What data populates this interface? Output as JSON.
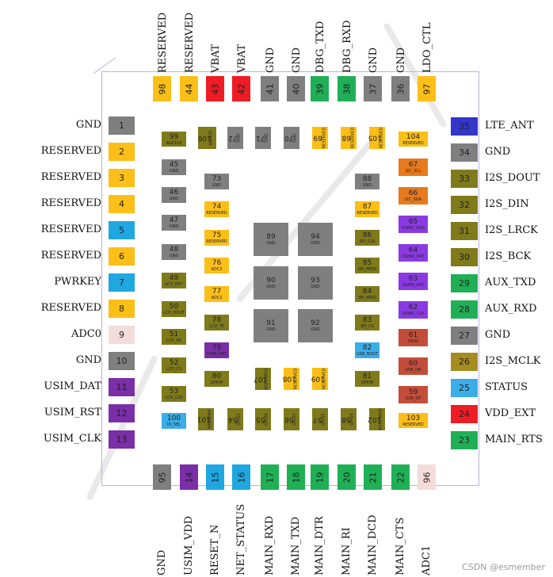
{
  "colors": {
    "yellow": "#fbbf18",
    "gray": "#7f7f7f",
    "red": "#ee1c24",
    "green": "#1fb056",
    "blue": "#1fa7e1",
    "purple": "#7a2ea7",
    "olive": "#7f7a1a",
    "orange": "#e67a1d",
    "violet": "#8a39e3",
    "rust": "#c44d39",
    "lightblue": "#3aaee6",
    "indigo": "#3336c8",
    "pink": "#f3dcd9",
    "khaki": "#a58d20"
  },
  "top_pins": [
    {
      "num": "98",
      "name": "RESERVED",
      "color": "yellow"
    },
    {
      "num": "44",
      "name": "RESERVED",
      "color": "yellow"
    },
    {
      "num": "43",
      "name": "VBAT",
      "color": "red"
    },
    {
      "num": "42",
      "name": "VBAT",
      "color": "red"
    },
    {
      "num": "41",
      "name": "GND",
      "color": "gray"
    },
    {
      "num": "40",
      "name": "GND",
      "color": "gray"
    },
    {
      "num": "39",
      "name": "DBG_TXD",
      "color": "green"
    },
    {
      "num": "38",
      "name": "DBG_RXD",
      "color": "green"
    },
    {
      "num": "37",
      "name": "GND",
      "color": "gray"
    },
    {
      "num": "36",
      "name": "GND",
      "color": "gray"
    },
    {
      "num": "97",
      "name": "LDO_CTL",
      "color": "yellow"
    }
  ],
  "left_pins": [
    {
      "num": "1",
      "name": "GND",
      "color": "gray"
    },
    {
      "num": "2",
      "name": "RESERVED",
      "color": "yellow"
    },
    {
      "num": "3",
      "name": "RESERVED",
      "color": "yellow"
    },
    {
      "num": "4",
      "name": "RESERVED",
      "color": "yellow"
    },
    {
      "num": "5",
      "name": "RESERVED",
      "color": "blue"
    },
    {
      "num": "6",
      "name": "RESERVED",
      "color": "yellow"
    },
    {
      "num": "7",
      "name": "PWRKEY",
      "color": "blue"
    },
    {
      "num": "8",
      "name": "RESERVED",
      "color": "yellow"
    },
    {
      "num": "9",
      "name": "ADC0",
      "color": "pink"
    },
    {
      "num": "10",
      "name": "GND",
      "color": "gray"
    },
    {
      "num": "11",
      "name": "USIM_DAT",
      "color": "purple"
    },
    {
      "num": "12",
      "name": "USIM_RST",
      "color": "purple"
    },
    {
      "num": "13",
      "name": "USIM_CLK",
      "color": "purple"
    }
  ],
  "right_pins": [
    {
      "num": "35",
      "name": "LTE_ANT",
      "color": "indigo"
    },
    {
      "num": "34",
      "name": "GND",
      "color": "gray"
    },
    {
      "num": "33",
      "name": "I2S_DOUT",
      "color": "olive"
    },
    {
      "num": "32",
      "name": "I2S_DIN",
      "color": "olive"
    },
    {
      "num": "31",
      "name": "I2S_LRCK",
      "color": "olive"
    },
    {
      "num": "30",
      "name": "I2S_BCK",
      "color": "olive"
    },
    {
      "num": "29",
      "name": "AUX_TXD",
      "color": "green"
    },
    {
      "num": "28",
      "name": "AUX_RXD",
      "color": "green"
    },
    {
      "num": "27",
      "name": "GND",
      "color": "gray"
    },
    {
      "num": "26",
      "name": "I2S_MCLK",
      "color": "khaki"
    },
    {
      "num": "25",
      "name": "STATUS",
      "color": "lightblue"
    },
    {
      "num": "24",
      "name": "VDD_EXT",
      "color": "red"
    },
    {
      "num": "23",
      "name": "MAIN_RTS",
      "color": "green"
    }
  ],
  "bottom_pins": [
    {
      "num": "95",
      "name": "GND",
      "color": "gray"
    },
    {
      "num": "14",
      "name": "USIM_VDD",
      "color": "purple"
    },
    {
      "num": "15",
      "name": "RESET_N",
      "color": "blue"
    },
    {
      "num": "16",
      "name": "NET_STATUS",
      "color": "blue"
    },
    {
      "num": "17",
      "name": "MAIN_RXD",
      "color": "green"
    },
    {
      "num": "18",
      "name": "MAIN_TXD",
      "color": "green"
    },
    {
      "num": "19",
      "name": "MAIN_DTR",
      "color": "green"
    },
    {
      "num": "20",
      "name": "MAIN_RI",
      "color": "green"
    },
    {
      "num": "21",
      "name": "MAIN_DCD",
      "color": "green"
    },
    {
      "num": "22",
      "name": "MAIN_CTS",
      "color": "green"
    },
    {
      "num": "96",
      "name": "ADC1",
      "color": "pink"
    }
  ],
  "inner_pins": [
    {
      "num": "99",
      "sub": "AGP103",
      "color": "olive"
    },
    {
      "num": "106",
      "sub": "AGPIO5",
      "color": "olive",
      "vertical": true
    },
    {
      "num": "72",
      "sub": "GND",
      "color": "gray",
      "vertical": true
    },
    {
      "num": "71",
      "sub": "GND",
      "color": "gray",
      "vertical": true
    },
    {
      "num": "70",
      "sub": "GND",
      "color": "gray",
      "vertical": true
    },
    {
      "num": "69",
      "sub": "RESERVED",
      "color": "yellow",
      "vertical": true
    },
    {
      "num": "68",
      "sub": "RESERVED",
      "color": "yellow",
      "vertical": true
    },
    {
      "num": "105",
      "sub": "RESERVED",
      "color": "yellow",
      "vertical": true
    },
    {
      "num": "104",
      "sub": "RESERVED",
      "color": "yellow"
    },
    {
      "num": "45",
      "sub": "GND",
      "color": "gray"
    },
    {
      "num": "67",
      "sub": "I2C_SCL",
      "color": "orange"
    },
    {
      "num": "73",
      "sub": "GND",
      "color": "gray"
    },
    {
      "num": "88",
      "sub": "GND",
      "color": "gray"
    },
    {
      "num": "46",
      "sub": "GND",
      "color": "gray"
    },
    {
      "num": "66",
      "sub": "I2C_SDA",
      "color": "orange"
    },
    {
      "num": "74",
      "sub": "RESERVED",
      "color": "yellow"
    },
    {
      "num": "87",
      "sub": "RESERVED",
      "color": "yellow"
    },
    {
      "num": "47",
      "sub": "GND",
      "color": "gray"
    },
    {
      "num": "65",
      "sub": "USIM2_VDD",
      "color": "violet"
    },
    {
      "num": "89",
      "sub": "GND",
      "color": "gray"
    },
    {
      "num": "94",
      "sub": "GND",
      "color": "gray"
    },
    {
      "num": "86",
      "sub": "SPI_CLK",
      "color": "olive"
    },
    {
      "num": "75",
      "sub": "RESERVED",
      "color": "yellow"
    },
    {
      "num": "48",
      "sub": "GND",
      "color": "gray"
    },
    {
      "num": "64",
      "sub": "USIM2_DAT",
      "color": "violet"
    },
    {
      "num": "85",
      "sub": "SPI_MOSI",
      "color": "olive"
    },
    {
      "num": "76",
      "sub": "ADC3",
      "color": "yellow"
    },
    {
      "num": "49",
      "sub": "LCD_RST",
      "color": "olive"
    },
    {
      "num": "90",
      "sub": "GND",
      "color": "gray"
    },
    {
      "num": "93",
      "sub": "GND",
      "color": "gray"
    },
    {
      "num": "63",
      "sub": "USIM2_RST",
      "color": "violet"
    },
    {
      "num": "84",
      "sub": "SPI_MISO",
      "color": "olive"
    },
    {
      "num": "77",
      "sub": "ADC2",
      "color": "yellow"
    },
    {
      "num": "50",
      "sub": "LCD_DOUT",
      "color": "olive"
    },
    {
      "num": "62",
      "sub": "USIM2_CLK",
      "color": "violet"
    },
    {
      "num": "91",
      "sub": "GND",
      "color": "gray"
    },
    {
      "num": "92",
      "sub": "GND",
      "color": "gray"
    },
    {
      "num": "78",
      "sub": "LCD_TE",
      "color": "olive"
    },
    {
      "num": "83",
      "sub": "SPI_CS",
      "color": "olive"
    },
    {
      "num": "51",
      "sub": "LCD_RS",
      "color": "olive"
    },
    {
      "num": "61",
      "sub": "VBUS",
      "color": "rust"
    },
    {
      "num": "79",
      "sub": "USIM_DET",
      "color": "purple"
    },
    {
      "num": "82",
      "sub": "USB_BOOT",
      "color": "lightblue"
    },
    {
      "num": "52",
      "sub": "LCD_CS",
      "color": "olive"
    },
    {
      "num": "60",
      "sub": "USB_DN",
      "color": "rust"
    },
    {
      "num": "80",
      "sub": "GPIO4",
      "color": "olive"
    },
    {
      "num": "107",
      "sub": "AGPIOWU1",
      "color": "olive",
      "vertical": true
    },
    {
      "num": "108",
      "sub": "RESERVED",
      "color": "yellow",
      "vertical": true
    },
    {
      "num": "109",
      "sub": "RESERVED",
      "color": "yellow",
      "vertical": true
    },
    {
      "num": "81",
      "sub": "GPIO6",
      "color": "olive"
    },
    {
      "num": "53",
      "sub": "LCD_CLK",
      "color": "olive"
    },
    {
      "num": "59",
      "sub": "USB_DP",
      "color": "rust"
    },
    {
      "num": "100",
      "sub": "IO_SEL",
      "color": "lightblue"
    },
    {
      "num": "101",
      "sub": "WAKEUP0",
      "color": "olive",
      "vertical": true
    },
    {
      "num": "54",
      "sub": "GPIO3",
      "color": "olive",
      "vertical": true
    },
    {
      "num": "55",
      "sub": "GPIO6",
      "color": "olive",
      "vertical": true
    },
    {
      "num": "56",
      "sub": "GPIO7",
      "color": "olive",
      "vertical": true
    },
    {
      "num": "57",
      "sub": "GPIO5",
      "color": "olive",
      "vertical": true
    },
    {
      "num": "58",
      "sub": "GPIO4",
      "color": "olive",
      "vertical": true
    },
    {
      "num": "102",
      "sub": "AGPIOWU0",
      "color": "olive",
      "vertical": true
    },
    {
      "num": "103",
      "sub": "RESERVED",
      "color": "yellow"
    }
  ],
  "footer": {
    "credit": "CSDN @esmember"
  }
}
